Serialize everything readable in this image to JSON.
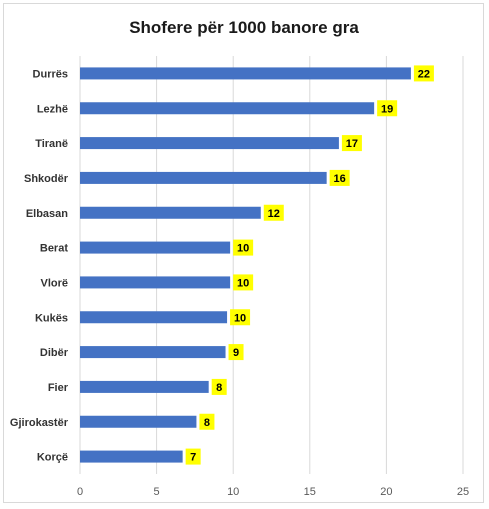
{
  "chart_data": {
    "type": "bar",
    "orientation": "horizontal",
    "title": "Shofere për 1000 banore gra",
    "categories": [
      "Durrës",
      "Lezhë",
      "Tiranë",
      "Shkodër",
      "Elbasan",
      "Berat",
      "Vlorë",
      "Kukës",
      "Dibër",
      "Fier",
      "Gjirokastër",
      "Korçë"
    ],
    "values": [
      21.6,
      19.2,
      16.9,
      16.1,
      11.8,
      9.8,
      9.8,
      9.6,
      9.5,
      8.4,
      7.6,
      6.7
    ],
    "data_labels": [
      "22",
      "19",
      "17",
      "16",
      "12",
      "10",
      "10",
      "10",
      "9",
      "8",
      "8",
      "7"
    ],
    "xlim": [
      0,
      25
    ],
    "x_ticks": [
      0,
      5,
      10,
      15,
      20,
      25
    ],
    "x_tick_labels": [
      "0",
      "5",
      "10",
      "15",
      "20",
      "25"
    ],
    "grid": "vertical",
    "legend": "none",
    "colors": {
      "bar": "#4472C4",
      "label_background": "#FFFF00",
      "gridline": "#d9d9d9"
    }
  }
}
